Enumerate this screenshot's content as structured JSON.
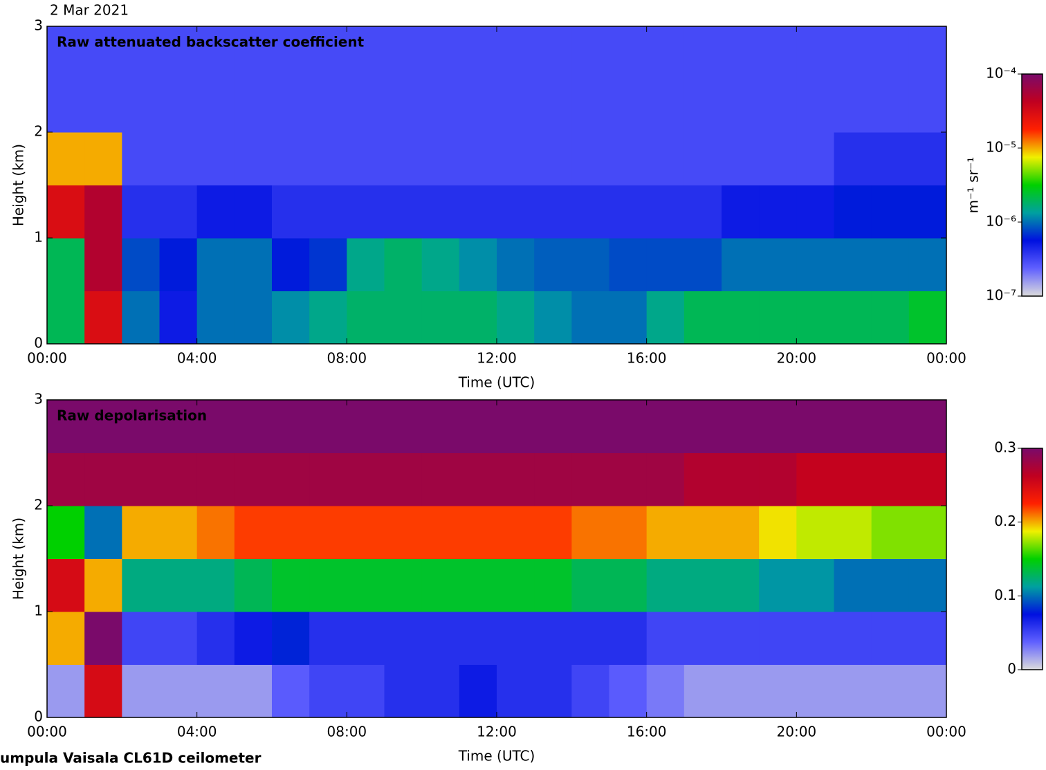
{
  "footer": "umpula Vaisala CL61D ceilometer",
  "chart_data": [
    {
      "type": "heatmap",
      "subtitle": "2 Mar 2021",
      "title": "Raw attenuated backscatter coefficient",
      "xlabel": "Time (UTC)",
      "ylabel": "Height (km)",
      "clabel": "m⁻¹ sr⁻¹",
      "xlim": [
        0,
        24
      ],
      "xticks": [
        {
          "value": 0,
          "label": "00:00"
        },
        {
          "value": 4,
          "label": "04:00"
        },
        {
          "value": 8,
          "label": "08:00"
        },
        {
          "value": 12,
          "label": "12:00"
        },
        {
          "value": 16,
          "label": "16:00"
        },
        {
          "value": 20,
          "label": "20:00"
        },
        {
          "value": 24,
          "label": "00:00"
        }
      ],
      "ylim": [
        0,
        3
      ],
      "yticks": [
        0,
        1,
        2,
        3
      ],
      "clim": [
        1e-07,
        0.0001
      ],
      "log_color": true,
      "cticks": [
        {
          "value": 0.0001,
          "label": "10⁻⁴"
        },
        {
          "value": 1e-05,
          "label": "10⁻⁵"
        },
        {
          "value": 1e-06,
          "label": "10⁻⁶"
        },
        {
          "value": 1e-07,
          "label": "10⁻⁷"
        }
      ],
      "colormap": [
        "#dcdcdc",
        "#6060ff",
        "#0010e0",
        "#00a0a0",
        "#00d000",
        "#f0f000",
        "#ff2000",
        "#c00020",
        "#7a0a6a"
      ],
      "x": [
        0.5,
        1.5,
        2.5,
        3.5,
        4.5,
        5.5,
        6.5,
        7.5,
        8.5,
        9.5,
        10.5,
        11.5,
        12.5,
        13.5,
        14.5,
        15.5,
        16.5,
        17.5,
        18.5,
        19.5,
        20.5,
        21.5,
        22.5,
        23.5
      ],
      "y": [
        0.25,
        0.75,
        1.25,
        1.75,
        2.25,
        2.75
      ],
      "z": [
        [
          2e-06,
          3e-05,
          1e-06,
          5e-07,
          1e-06,
          1e-06,
          1.2e-06,
          1.5e-06,
          1.8e-06,
          1.8e-06,
          1.8e-06,
          1.8e-06,
          1.5e-06,
          1.2e-06,
          1e-06,
          1e-06,
          1.5e-06,
          2e-06,
          2e-06,
          2e-06,
          2e-06,
          2e-06,
          2e-06,
          2.5e-06
        ],
        [
          2e-06,
          5e-05,
          8e-07,
          6e-07,
          1e-06,
          1e-06,
          6e-07,
          7e-07,
          1.5e-06,
          1.8e-06,
          1.5e-06,
          1.2e-06,
          1e-06,
          9e-07,
          9e-07,
          8e-07,
          8e-07,
          8e-07,
          1e-06,
          1e-06,
          1e-06,
          1e-06,
          1e-06,
          1e-06
        ],
        [
          3e-05,
          5e-05,
          4e-07,
          4e-07,
          5e-07,
          5e-07,
          4e-07,
          4e-07,
          4e-07,
          4e-07,
          4e-07,
          4e-07,
          4e-07,
          4e-07,
          4e-07,
          4e-07,
          4e-07,
          4e-07,
          5e-07,
          5e-07,
          5e-07,
          6e-07,
          6e-07,
          6e-07
        ],
        [
          1e-05,
          1e-05,
          3e-07,
          3e-07,
          3e-07,
          3e-07,
          3e-07,
          3e-07,
          3e-07,
          3e-07,
          3e-07,
          3e-07,
          3e-07,
          3e-07,
          3e-07,
          3e-07,
          3e-07,
          3e-07,
          3e-07,
          3e-07,
          3e-07,
          4e-07,
          4e-07,
          4e-07
        ],
        [
          3e-07,
          3e-07,
          3e-07,
          3e-07,
          3e-07,
          3e-07,
          3e-07,
          3e-07,
          3e-07,
          3e-07,
          3e-07,
          3e-07,
          3e-07,
          3e-07,
          3e-07,
          3e-07,
          3e-07,
          3e-07,
          3e-07,
          3e-07,
          3e-07,
          3e-07,
          3e-07,
          3e-07
        ],
        [
          3e-07,
          3e-07,
          3e-07,
          3e-07,
          3e-07,
          3e-07,
          3e-07,
          3e-07,
          3e-07,
          3e-07,
          3e-07,
          3e-07,
          3e-07,
          3e-07,
          3e-07,
          3e-07,
          3e-07,
          3e-07,
          3e-07,
          3e-07,
          3e-07,
          3e-07,
          3e-07,
          3e-07
        ]
      ]
    },
    {
      "type": "heatmap",
      "title": "Raw depolarisation",
      "xlabel": "Time (UTC)",
      "ylabel": "Height (km)",
      "xlim": [
        0,
        24
      ],
      "xticks": [
        {
          "value": 0,
          "label": "00:00"
        },
        {
          "value": 4,
          "label": "04:00"
        },
        {
          "value": 8,
          "label": "08:00"
        },
        {
          "value": 12,
          "label": "12:00"
        },
        {
          "value": 16,
          "label": "16:00"
        },
        {
          "value": 20,
          "label": "20:00"
        },
        {
          "value": 24,
          "label": "00:00"
        }
      ],
      "ylim": [
        0,
        3
      ],
      "yticks": [
        0,
        1,
        2,
        3
      ],
      "clim": [
        0,
        0.3
      ],
      "log_color": false,
      "cticks": [
        0.3,
        0.2,
        0.1,
        0
      ],
      "colormap": [
        "#dcdcdc",
        "#6060ff",
        "#0010e0",
        "#00a0a0",
        "#00d000",
        "#f0f000",
        "#ff2000",
        "#c00020",
        "#7a0a6a"
      ],
      "x": [
        0.5,
        1.5,
        2.5,
        3.5,
        4.5,
        5.5,
        6.5,
        7.5,
        8.5,
        9.5,
        10.5,
        11.5,
        12.5,
        13.5,
        14.5,
        15.5,
        16.5,
        17.5,
        18.5,
        19.5,
        20.5,
        21.5,
        22.5,
        23.5
      ],
      "y": [
        0.25,
        0.75,
        1.25,
        1.75,
        2.25,
        2.75
      ],
      "z": [
        [
          0.02,
          0.25,
          0.02,
          0.02,
          0.02,
          0.02,
          0.04,
          0.05,
          0.05,
          0.06,
          0.06,
          0.07,
          0.06,
          0.06,
          0.05,
          0.04,
          0.03,
          0.02,
          0.02,
          0.02,
          0.02,
          0.02,
          0.02,
          0.02
        ],
        [
          0.2,
          0.3,
          0.05,
          0.05,
          0.06,
          0.07,
          0.08,
          0.06,
          0.06,
          0.06,
          0.06,
          0.06,
          0.06,
          0.06,
          0.06,
          0.06,
          0.05,
          0.05,
          0.05,
          0.05,
          0.05,
          0.05,
          0.05,
          0.05
        ],
        [
          0.25,
          0.2,
          0.12,
          0.12,
          0.12,
          0.13,
          0.14,
          0.14,
          0.14,
          0.14,
          0.14,
          0.14,
          0.14,
          0.14,
          0.13,
          0.13,
          0.12,
          0.12,
          0.12,
          0.11,
          0.11,
          0.1,
          0.1,
          0.1
        ],
        [
          0.15,
          0.1,
          0.2,
          0.2,
          0.21,
          0.22,
          0.22,
          0.22,
          0.22,
          0.22,
          0.22,
          0.22,
          0.22,
          0.22,
          0.21,
          0.21,
          0.2,
          0.2,
          0.2,
          0.19,
          0.18,
          0.18,
          0.17,
          0.17
        ],
        [
          0.28,
          0.28,
          0.28,
          0.28,
          0.28,
          0.28,
          0.28,
          0.28,
          0.28,
          0.28,
          0.28,
          0.28,
          0.28,
          0.28,
          0.28,
          0.28,
          0.28,
          0.27,
          0.27,
          0.27,
          0.26,
          0.26,
          0.26,
          0.26
        ],
        [
          0.3,
          0.3,
          0.3,
          0.3,
          0.3,
          0.3,
          0.3,
          0.3,
          0.3,
          0.3,
          0.3,
          0.3,
          0.3,
          0.3,
          0.3,
          0.3,
          0.3,
          0.3,
          0.3,
          0.3,
          0.3,
          0.3,
          0.3,
          0.3
        ]
      ]
    }
  ]
}
